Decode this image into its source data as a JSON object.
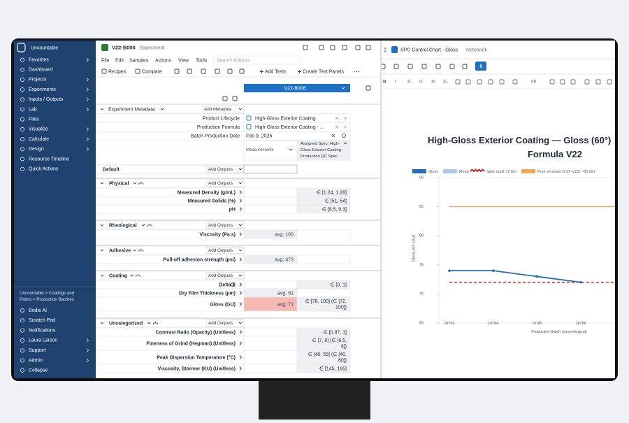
{
  "sidebar": {
    "brand": "Uncountable",
    "nav": [
      "Favorites",
      "Dashboard",
      "Projects",
      "Experiments",
      "Inputs / Outputs",
      "Lab",
      "Files",
      "Visualize",
      "Calculate",
      "Design",
      "Resource Timeline",
      "Quick Actions"
    ],
    "breadcrumb": [
      "Uncountable > Coatings and",
      "Paints > Production Batches"
    ],
    "bottom": [
      "Bodie AI",
      "Scratch Pad",
      "Notifications",
      "Laura Larson",
      "Support",
      "Admin",
      "Collapse"
    ]
  },
  "header": {
    "code": "V22-B006",
    "kind": "Experiment",
    "menu": [
      "File",
      "Edit",
      "Samples",
      "Actions",
      "View",
      "Tools"
    ],
    "search_placeholder": "Search Actions",
    "toolbar": [
      "Recipes",
      "Compare",
      "Add Tests",
      "Create Test Panels"
    ]
  },
  "column_header": "V22-B006",
  "metadata": {
    "title": "Experiment Metadata",
    "button": "Add Metadata",
    "rows": [
      {
        "label": "Product Lifecycle",
        "value": "High-Gloss Exterior Coating"
      },
      {
        "label": "Production Formula",
        "value": "High-Gloss Exterior Coating - ..."
      },
      {
        "label": "Batch Production Date",
        "value": "Feb 9, 2026"
      }
    ]
  },
  "measurements_header": "Measurements",
  "spec_header": [
    "Assigned Spec: High-",
    "Gloss Exterior Coating -",
    "Production QC Spec"
  ],
  "default_group": {
    "title": "Default",
    "button": "Add Outputs"
  },
  "sections": [
    {
      "title": "Physical",
      "button": "Add Outputs",
      "rows": [
        {
          "label": "Measured Density (g/mL)",
          "spec": [
            "∈ [1.24, 1.28]"
          ]
        },
        {
          "label": "Measured Solids (%)",
          "spec": [
            "∈ [51, 54]"
          ]
        },
        {
          "label": "pH",
          "spec": [
            "∈ [8.5, 9.3]"
          ]
        }
      ]
    },
    {
      "title": "Rheological",
      "button": "Add Outputs",
      "rows": [
        {
          "label": "Viscosity (Pa.s)",
          "measured": "avg: 160"
        }
      ]
    },
    {
      "title": "Adhesive",
      "button": "Add Outputs",
      "rows": [
        {
          "label": "Pull-off adhesion strength (psi)",
          "measured": "avg: 473"
        }
      ]
    },
    {
      "title": "Coating",
      "button": "Add Outputs",
      "rows": [
        {
          "label": "Delta E",
          "spec": [
            "∈ [0, 1]"
          ]
        },
        {
          "label": "Dry Film Thickness (µm)",
          "measured": "avg: 61"
        },
        {
          "label": "Gloss (GU)",
          "measured": "avg: 71",
          "flag": true,
          "spec": [
            "∈ [78, 100] (∈ [72,",
            "100])"
          ]
        }
      ]
    },
    {
      "title": "Uncategorized",
      "button": "Add Outputs",
      "rows": [
        {
          "label": "Contrast Ratio (Opacity) (Unitless)",
          "spec": [
            "∈ [0.97, 1]"
          ]
        },
        {
          "label": "Fineness of Grind (Hegman) (Unitless)",
          "spec": [
            "∈ [7, 8] (∈ [6.5,",
            "8])"
          ]
        },
        {
          "label": "Peak Dispersion Temperature (°C)",
          "spec": [
            "∈ [40, 55] (∈ [40,",
            "60])"
          ]
        },
        {
          "label": "Viscosity, Stormer (KU) (Unitless)",
          "spec": [
            "∈ [145, 165]"
          ]
        }
      ]
    }
  ],
  "notebook": {
    "title": "SPC Control Chart - Gloss",
    "kind": "Notebook",
    "format_toolbar": [
      "B",
      "I",
      "S",
      "U",
      "X²",
      "X₂",
      "Fit"
    ],
    "chart": {
      "type": "line",
      "title": [
        "High-Gloss Exterior Coating — Gloss (60°)",
        "Formula V22"
      ],
      "x_label": "Production Batch (chronological)",
      "y_label": "Gloss, 60° (GU)",
      "categories": [
        "18783",
        "18784",
        "18785",
        "18786"
      ],
      "ylim": [
        65,
        90
      ],
      "yticks": [
        65,
        70,
        75,
        80,
        85,
        90
      ],
      "series": [
        {
          "name": "Gloss",
          "color": "#1f6fb5",
          "values": [
            74,
            74,
            73,
            72
          ]
        },
        {
          "name": "Mean",
          "color": "#aec7e8",
          "values": [
            null,
            null,
            null,
            null
          ]
        }
      ],
      "hlines": [
        {
          "name": "Spec Limit 72 GU",
          "color": "#d62728",
          "value": 72,
          "dashed": true
        },
        {
          "name": "Prior versions (V17–V21) ~85 GU",
          "color": "#f5a55a",
          "value": 85,
          "dashed": false
        }
      ]
    }
  }
}
